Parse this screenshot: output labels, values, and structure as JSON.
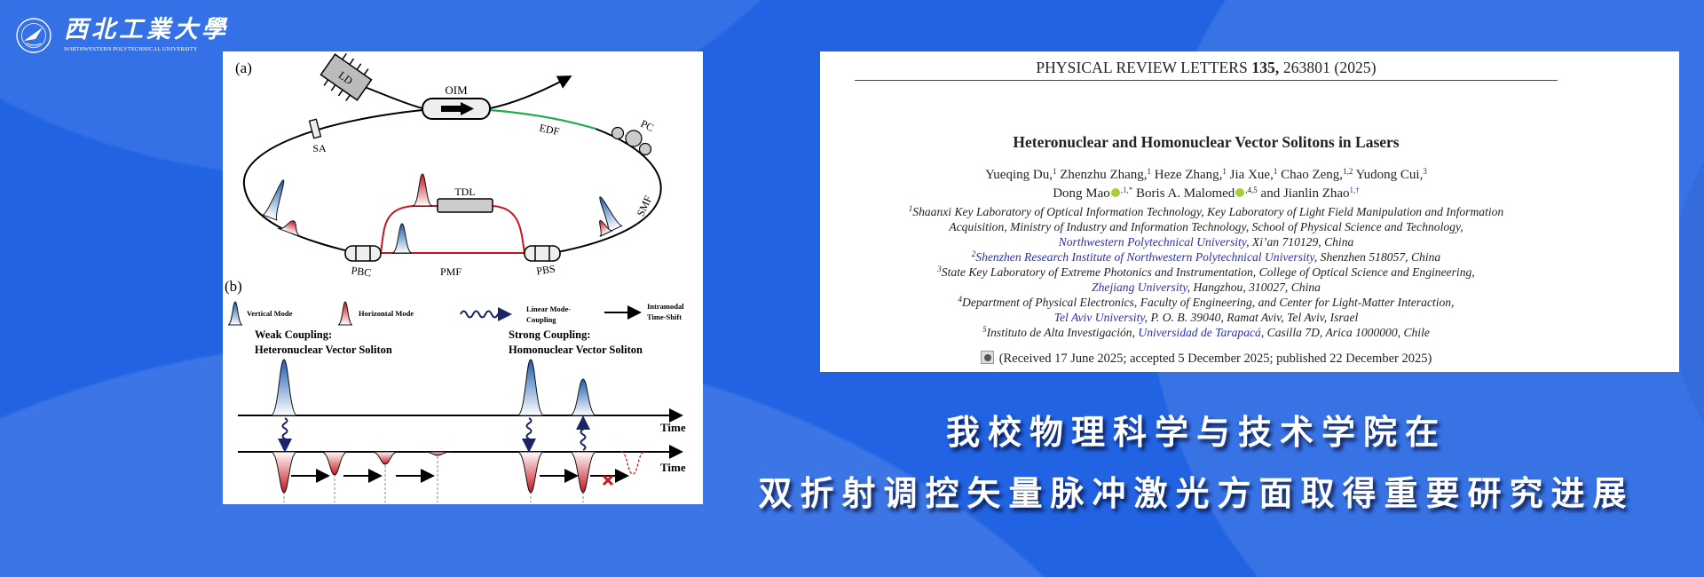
{
  "colors": {
    "background": "#2163e3",
    "vertical_mode": "#1a5fb0",
    "horizontal_mode": "#c8141e",
    "edf_fiber": "#1fae4b",
    "pmf_fiber": "#c8141e",
    "link": "#2b2fb0",
    "orcid": "#a6ce39"
  },
  "logo": {
    "name_cn": "西北工業大學",
    "name_en": "NORTHWESTERN POLYTECHNICAL UNIVERSITY",
    "icon": "university-emblem-icon"
  },
  "figure": {
    "panel_a": {
      "label": "(a)",
      "components": {
        "ld": "LD",
        "oim": "OIM",
        "edf": "EDF",
        "pc": "PC",
        "sa": "SA",
        "smf": "SMF",
        "tdl": "TDL",
        "pbc": "PBC",
        "pbs": "PBS",
        "pmf": "PMF"
      }
    },
    "panel_b": {
      "label": "(b)",
      "legend": {
        "vertical": "Vertical Mode",
        "horizontal": "Horizontal Mode",
        "coupling_1": "Linear Mode-",
        "coupling_2": "Coupling",
        "shift_1": "Intramodal",
        "shift_2": "Time-Shift"
      },
      "weak_1": "Weak Coupling:",
      "weak_2": "Heteronuclear Vector Soliton",
      "strong_1": "Strong Coupling:",
      "strong_2": "Homonuclear Vector Soliton",
      "axis_label": "Time"
    }
  },
  "paper": {
    "journal": "PHYSICAL REVIEW LETTERS ",
    "volume": "135,",
    "article": " 263801 (2025)",
    "title": "Heteronuclear and Homonuclear Vector Solitons in Lasers",
    "authors_line1": [
      {
        "name": "Yueqing Du,",
        "sup": "1"
      },
      {
        "name": " Zhenzhu Zhang,",
        "sup": "1"
      },
      {
        "name": " Heze Zhang,",
        "sup": "1"
      },
      {
        "name": " Jia Xue,",
        "sup": "1"
      },
      {
        "name": " Chao Zeng,",
        "sup": "1,2"
      },
      {
        "name": " Yudong Cui,",
        "sup": "3"
      }
    ],
    "authors_line2": [
      {
        "name": "Dong Mao",
        "orcid": true,
        "sup": ",1,*"
      },
      {
        "name": " Boris A. Malomed",
        "orcid": true,
        "sup": ",4,5"
      },
      {
        "name": " and Jianlin Zhao",
        "sup": "1,†"
      }
    ],
    "affiliations": [
      {
        "sup": "1",
        "segs": [
          {
            "t": "Shaanxi Key Laboratory of Optical Information Technology, Key Laboratory of Light Field Manipulation and Information"
          }
        ]
      },
      {
        "segs": [
          {
            "t": "Acquisition, Ministry of Industry and Information Technology, School of Physical Science and Technology,"
          }
        ]
      },
      {
        "segs": [
          {
            "t": "Northwestern Polytechnical University",
            "link": true
          },
          {
            "t": ", Xi’an 710129, China"
          }
        ]
      },
      {
        "sup": "2",
        "segs": [
          {
            "t": "Shenzhen Research Institute of Northwestern Polytechnical University",
            "link": true
          },
          {
            "t": ", Shenzhen 518057, China"
          }
        ]
      },
      {
        "sup": "3",
        "segs": [
          {
            "t": "State Key Laboratory of Extreme Photonics and Instrumentation, College of Optical Science and Engineering,"
          }
        ]
      },
      {
        "segs": [
          {
            "t": "Zhejiang University",
            "link": true
          },
          {
            "t": ", Hangzhou, 310027, China"
          }
        ]
      },
      {
        "sup": "4",
        "segs": [
          {
            "t": "Department of Physical Electronics, Faculty of Engineering, and Center for Light-Matter Interaction,"
          }
        ]
      },
      {
        "segs": [
          {
            "t": "Tel Aviv University",
            "link": true
          },
          {
            "t": ", P. O. B. 39040, Ramat Aviv, Tel Aviv, Israel"
          }
        ]
      },
      {
        "sup": "5",
        "segs": [
          {
            "t": "Instituto de Alta Investigación, "
          },
          {
            "t": "Universidad de Tarapacá",
            "link": true
          },
          {
            "t": ", Casilla 7D, Arica 1000000, Chile"
          }
        ]
      }
    ],
    "received": "(Received 17 June 2025; accepted 5 December 2025; published 22 December 2025)"
  },
  "headline": {
    "line1": "我校物理科学与技术学院在",
    "line2": "双折射调控矢量脉冲激光方面取得重要研究进展"
  }
}
